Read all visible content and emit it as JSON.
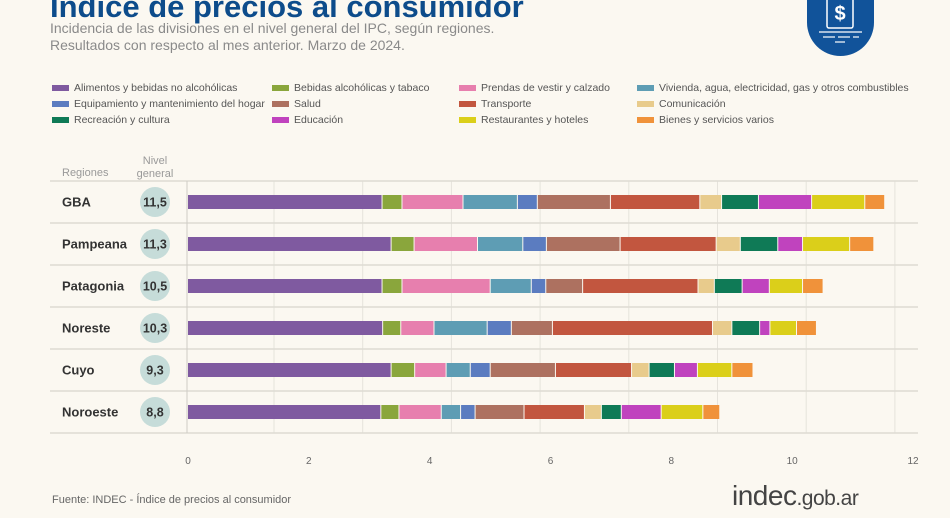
{
  "header": {
    "title": "Índice de precios al consumidor",
    "subtitle_1": "Incidencia de las divisiones en el nivel general del IPC, según regiones.",
    "subtitle_2": "Resultados con respecto al mes anterior. Marzo de 2024."
  },
  "footer": {
    "source": "Fuente: INDEC - Índice de precios al consumidor",
    "logo_main": "indec",
    "logo_suffix": ".gob.ar"
  },
  "badge_icon": "dollar-document-icon",
  "chart_data": {
    "type": "bar",
    "orientation": "horizontal",
    "stacked": true,
    "title": "Índice de precios al consumidor",
    "column_headers": {
      "regions": "Regiones",
      "general": "Nivel general"
    },
    "xlim": [
      0,
      12
    ],
    "xticks": [
      "0",
      "2",
      "4",
      "6",
      "8",
      "10",
      "12"
    ],
    "categories": [
      "GBA",
      "Pampeana",
      "Patagonia",
      "Noreste",
      "Cuyo",
      "Noroeste"
    ],
    "general_level": [
      "11,5",
      "11,3",
      "10,5",
      "10,3",
      "9,3",
      "8,8"
    ],
    "series": [
      {
        "name": "Alimentos y bebidas no alcohólicas",
        "color": "#7f5aa0",
        "values": [
          3.22,
          3.37,
          3.22,
          3.23,
          3.37,
          3.2
        ]
      },
      {
        "name": "Bebidas alcohólicas y tabaco",
        "color": "#8aa63c",
        "values": [
          0.33,
          0.38,
          0.33,
          0.3,
          0.39,
          0.3
        ]
      },
      {
        "name": "Prendas de vestir y calzado",
        "color": "#e77fae",
        "values": [
          1.01,
          1.05,
          1.46,
          0.55,
          0.52,
          0.7
        ]
      },
      {
        "name": "Vivienda, agua, electricidad, gas y otros combustibles",
        "color": "#5e9db4",
        "values": [
          0.9,
          0.75,
          0.68,
          0.88,
          0.4,
          0.32
        ]
      },
      {
        "name": "Equipamiento y mantenimiento del hogar",
        "color": "#5b7cc0",
        "values": [
          0.33,
          0.39,
          0.24,
          0.4,
          0.33,
          0.24
        ]
      },
      {
        "name": "Salud",
        "color": "#ad7160",
        "values": [
          1.21,
          1.22,
          0.61,
          0.68,
          1.08,
          0.81
        ]
      },
      {
        "name": "Transporte",
        "color": "#c2563f",
        "values": [
          1.48,
          1.59,
          1.91,
          2.65,
          1.26,
          1.0
        ]
      },
      {
        "name": "Comunicación",
        "color": "#e8cb8c",
        "values": [
          0.36,
          0.4,
          0.27,
          0.32,
          0.29,
          0.28
        ]
      },
      {
        "name": "Recreación y cultura",
        "color": "#0f7a56",
        "values": [
          0.61,
          0.62,
          0.46,
          0.46,
          0.42,
          0.33
        ]
      },
      {
        "name": "Educación",
        "color": "#c043be",
        "values": [
          0.88,
          0.41,
          0.45,
          0.17,
          0.38,
          0.66
        ]
      },
      {
        "name": "Restaurantes y hoteles",
        "color": "#dbcf1a",
        "values": [
          0.88,
          0.78,
          0.55,
          0.44,
          0.57,
          0.69
        ]
      },
      {
        "name": "Bienes y servicios varios",
        "color": "#f0923a",
        "values": [
          0.33,
          0.4,
          0.34,
          0.33,
          0.35,
          0.28
        ]
      }
    ],
    "legend_placement": "top"
  }
}
